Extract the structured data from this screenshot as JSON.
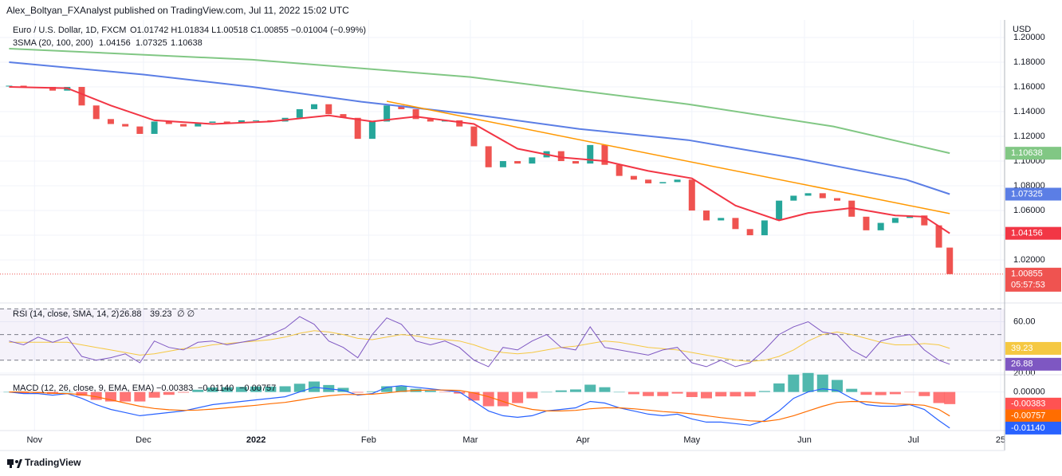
{
  "header": {
    "published": "Alex_Boltyan_FXAnalyst published on TradingView.com, Jul 11, 2022 15:02 UTC",
    "currency": "USD",
    "footer": "TradingView"
  },
  "chart_data": [
    {
      "type": "candlestick",
      "title": "Euro / U.S. Dollar, 1D, FXCM",
      "ohlc": "O1.01742 H1.01834 L1.00518 C1.00855 −0.01004 (−0.99%)",
      "up_color": "#26a69a",
      "down_color": "#ef5350",
      "x": [
        -7,
        -3,
        1,
        5,
        9,
        13,
        17,
        21,
        25,
        29,
        33,
        37,
        41,
        45,
        49,
        53,
        57,
        61,
        65,
        69,
        73,
        77,
        81,
        85,
        89,
        93,
        97,
        101,
        105,
        109,
        113,
        117,
        121,
        125,
        129,
        133,
        137,
        141,
        145,
        149,
        153,
        157,
        161,
        165,
        169,
        173,
        177,
        181,
        185,
        189,
        193,
        197,
        201,
        205,
        209,
        213,
        217,
        221,
        225,
        229,
        233,
        237,
        241,
        245,
        249,
        252
      ],
      "close": [
        1.161,
        1.16,
        1.16,
        1.157,
        1.16,
        1.145,
        1.134,
        1.13,
        1.128,
        1.122,
        1.132,
        1.13,
        1.128,
        1.131,
        1.132,
        1.131,
        1.133,
        1.133,
        1.132,
        1.135,
        1.142,
        1.146,
        1.138,
        1.135,
        1.118,
        1.132,
        1.145,
        1.142,
        1.134,
        1.132,
        1.133,
        1.128,
        1.112,
        1.095,
        1.1,
        1.098,
        1.103,
        1.108,
        1.1,
        1.098,
        1.113,
        1.097,
        1.088,
        1.085,
        1.082,
        1.083,
        1.085,
        1.06,
        1.052,
        1.054,
        1.045,
        1.04,
        1.052,
        1.068,
        1.072,
        1.074,
        1.07,
        1.068,
        1.055,
        1.044,
        1.05,
        1.054,
        1.056,
        1.048,
        1.03,
        1.00855
      ],
      "countdown": "05:57:53",
      "xlim": [
        -9.5,
        267.1
      ],
      "xticks": [
        {
          "value": 0,
          "label": "Nov"
        },
        {
          "value": 30,
          "label": "Dec"
        },
        {
          "value": 61,
          "label": "2022"
        },
        {
          "value": 92,
          "label": "Feb"
        },
        {
          "value": 120,
          "label": "Mar"
        },
        {
          "value": 151,
          "label": "Apr"
        },
        {
          "value": 181,
          "label": "May"
        },
        {
          "value": 212,
          "label": "Jun"
        },
        {
          "value": 242,
          "label": "Jul"
        },
        {
          "value": 266,
          "label": "25"
        }
      ],
      "ylim": [
        0.9852,
        1.2142
      ],
      "yticks": [
        {
          "value": 1.2,
          "label": "1.20000"
        },
        {
          "value": 1.18,
          "label": "1.18000"
        },
        {
          "value": 1.16,
          "label": "1.16000"
        },
        {
          "value": 1.14,
          "label": "1.14000"
        },
        {
          "value": 1.12,
          "label": "1.12000"
        },
        {
          "value": 1.1,
          "label": "1.10000"
        },
        {
          "value": 1.08,
          "label": "1.08000"
        },
        {
          "value": 1.06,
          "label": "1.06000"
        },
        {
          "value": 1.04,
          "label": "1.04000"
        },
        {
          "value": 1.02,
          "label": "1.02000"
        }
      ],
      "grid": true,
      "overlay_name": "3SMA (20, 100, 200)",
      "series": [
        {
          "color": "#f23645",
          "x": [
            -7,
            9,
            21,
            33,
            49,
            65,
            81,
            93,
            105,
            121,
            133,
            145,
            157,
            169,
            181,
            193,
            205,
            213,
            225,
            237,
            245,
            252
          ],
          "values": [
            1.16,
            1.159,
            1.145,
            1.133,
            1.13,
            1.132,
            1.137,
            1.132,
            1.136,
            1.13,
            1.11,
            1.103,
            1.1,
            1.092,
            1.086,
            1.064,
            1.052,
            1.058,
            1.062,
            1.056,
            1.055,
            1.04156
          ]
        },
        {
          "color": "#5b7ee5",
          "x": [
            -7,
            30,
            60,
            90,
            120,
            150,
            180,
            210,
            240,
            252
          ],
          "values": [
            1.18,
            1.17,
            1.16,
            1.148,
            1.138,
            1.126,
            1.117,
            1.102,
            1.085,
            1.07325
          ]
        },
        {
          "color": "#81c784",
          "x": [
            -7,
            60,
            120,
            180,
            220,
            252
          ],
          "values": [
            1.191,
            1.182,
            1.168,
            1.146,
            1.128,
            1.10638
          ]
        }
      ],
      "trendline": {
        "color": "#ff9800",
        "x": [
          97,
          252
        ],
        "values": [
          1.1484,
          1.0575
        ]
      }
    },
    {
      "type": "line",
      "title": "RSI (14, close, SMA, 14, 2)",
      "extra": "∅ ∅",
      "ylim": [
        18.7,
        74.6
      ],
      "yticks": [
        {
          "value": 60,
          "label": "60.00"
        },
        {
          "value": 20,
          "label": "20.00"
        }
      ],
      "bands": [
        30,
        50,
        70
      ],
      "band_color": "#7e57c2",
      "series": [
        {
          "color": "#7e57c2",
          "values": [
            45,
            42,
            48,
            44,
            48,
            33,
            30,
            32,
            35,
            28,
            45,
            40,
            38,
            44,
            45,
            42,
            44,
            46,
            50,
            55,
            64,
            58,
            45,
            40,
            32,
            50,
            63,
            58,
            45,
            42,
            45,
            40,
            30,
            25,
            40,
            38,
            45,
            50,
            40,
            38,
            56,
            40,
            38,
            36,
            34,
            38,
            40,
            28,
            25,
            30,
            25,
            28,
            38,
            50,
            56,
            60,
            52,
            50,
            38,
            32,
            45,
            48,
            50,
            38,
            30,
            26.88
          ]
        },
        {
          "color": "#f5c842",
          "values": [
            44,
            44,
            44,
            44,
            44,
            42,
            40,
            38,
            36,
            34,
            35,
            37,
            39,
            40,
            42,
            43,
            44,
            45,
            46,
            48,
            51,
            53,
            52,
            50,
            47,
            46,
            48,
            50,
            49,
            47,
            46,
            45,
            42,
            38,
            36,
            35,
            36,
            38,
            40,
            41,
            43,
            45,
            44,
            42,
            40,
            39,
            38,
            36,
            34,
            32,
            30,
            29,
            30,
            33,
            38,
            45,
            50,
            52,
            50,
            47,
            44,
            42,
            42,
            43,
            42,
            39.23
          ]
        }
      ]
    },
    {
      "type": "macd",
      "title": "MACD (12, 26, close, 9, EMA, EMA)",
      "ylim": [
        -0.01218,
        0.00544
      ],
      "yticks": [
        {
          "value": 0,
          "label": "0.00000"
        }
      ],
      "histogram": {
        "up_color": "#26a69a",
        "down_color": "#ff5252",
        "values": [
          0,
          -0.0005,
          -0.0003,
          -0.0006,
          0,
          -0.0012,
          -0.0025,
          -0.003,
          -0.003,
          -0.003,
          -0.0018,
          -0.0009,
          -0.0002,
          0.0007,
          0.0014,
          0.0015,
          0.0016,
          0.0017,
          0.0017,
          0.0018,
          0.0026,
          0.0033,
          0.0022,
          0.0013,
          -0.0002,
          0.0002,
          0.0018,
          0.0018,
          0.001,
          0.0004,
          -0.0001,
          -0.0005,
          -0.0027,
          -0.0045,
          -0.0045,
          -0.0035,
          -0.002,
          0,
          0.0005,
          0.0008,
          0.0023,
          0.0015,
          0,
          -0.0007,
          -0.0013,
          -0.0013,
          -0.0005,
          -0.0016,
          -0.002,
          -0.0014,
          -0.0014,
          -0.0014,
          0.0003,
          0.0027,
          0.0055,
          0.006,
          0.0055,
          0.0038,
          0.001,
          -0.0009,
          -0.001,
          -0.0007,
          -0.0001,
          -0.0013,
          -0.0035,
          -0.00383
        ],
        "last_label": "-0.00383",
        "legend_label": "−0.00383"
      },
      "series": [
        {
          "color": "#2962ff",
          "values": [
            0,
            -0.0005,
            -0.0005,
            -0.001,
            -0.0005,
            -0.002,
            -0.004,
            -0.0055,
            -0.0065,
            -0.0075,
            -0.007,
            -0.0065,
            -0.006,
            -0.005,
            -0.004,
            -0.0035,
            -0.003,
            -0.0025,
            -0.002,
            -0.0015,
            0,
            0.0015,
            0.001,
            0.0005,
            -0.001,
            -0.0005,
            0.0015,
            0.002,
            0.0015,
            0.001,
            0.0005,
            0,
            -0.003,
            -0.006,
            -0.0075,
            -0.008,
            -0.0075,
            -0.006,
            -0.0055,
            -0.005,
            -0.003,
            -0.0035,
            -0.005,
            -0.006,
            -0.007,
            -0.0075,
            -0.007,
            -0.0085,
            -0.0095,
            -0.0095,
            -0.01,
            -0.0105,
            -0.009,
            -0.006,
            -0.002,
            0,
            0.001,
            0.0005,
            -0.002,
            -0.004,
            -0.0045,
            -0.0045,
            -0.004,
            -0.0055,
            -0.009,
            -0.0114
          ],
          "last_label": "-0.01140",
          "legend_label": "−0.01140"
        },
        {
          "color": "#ff6d00",
          "values": [
            0,
            0,
            -0.0002,
            -0.0004,
            -0.0005,
            -0.0008,
            -0.0015,
            -0.0025,
            -0.0035,
            -0.0045,
            -0.0052,
            -0.0056,
            -0.0058,
            -0.0057,
            -0.0054,
            -0.005,
            -0.0046,
            -0.0042,
            -0.0037,
            -0.0033,
            -0.0026,
            -0.0018,
            -0.0012,
            -0.0008,
            -0.0008,
            -0.0007,
            -0.0003,
            0.0002,
            0.0005,
            0.0006,
            0.0006,
            0.0005,
            -0.0003,
            -0.0015,
            -0.003,
            -0.0045,
            -0.0055,
            -0.006,
            -0.006,
            -0.0058,
            -0.0053,
            -0.005,
            -0.005,
            -0.0053,
            -0.0057,
            -0.0062,
            -0.0065,
            -0.0069,
            -0.0075,
            -0.0081,
            -0.0086,
            -0.0091,
            -0.0093,
            -0.0087,
            -0.0075,
            -0.006,
            -0.0045,
            -0.0033,
            -0.003,
            -0.0031,
            -0.0035,
            -0.0038,
            -0.0039,
            -0.0042,
            -0.0055,
            -0.00757
          ],
          "last_label": "-0.00757",
          "legend_label": "−0.00757"
        }
      ]
    }
  ]
}
